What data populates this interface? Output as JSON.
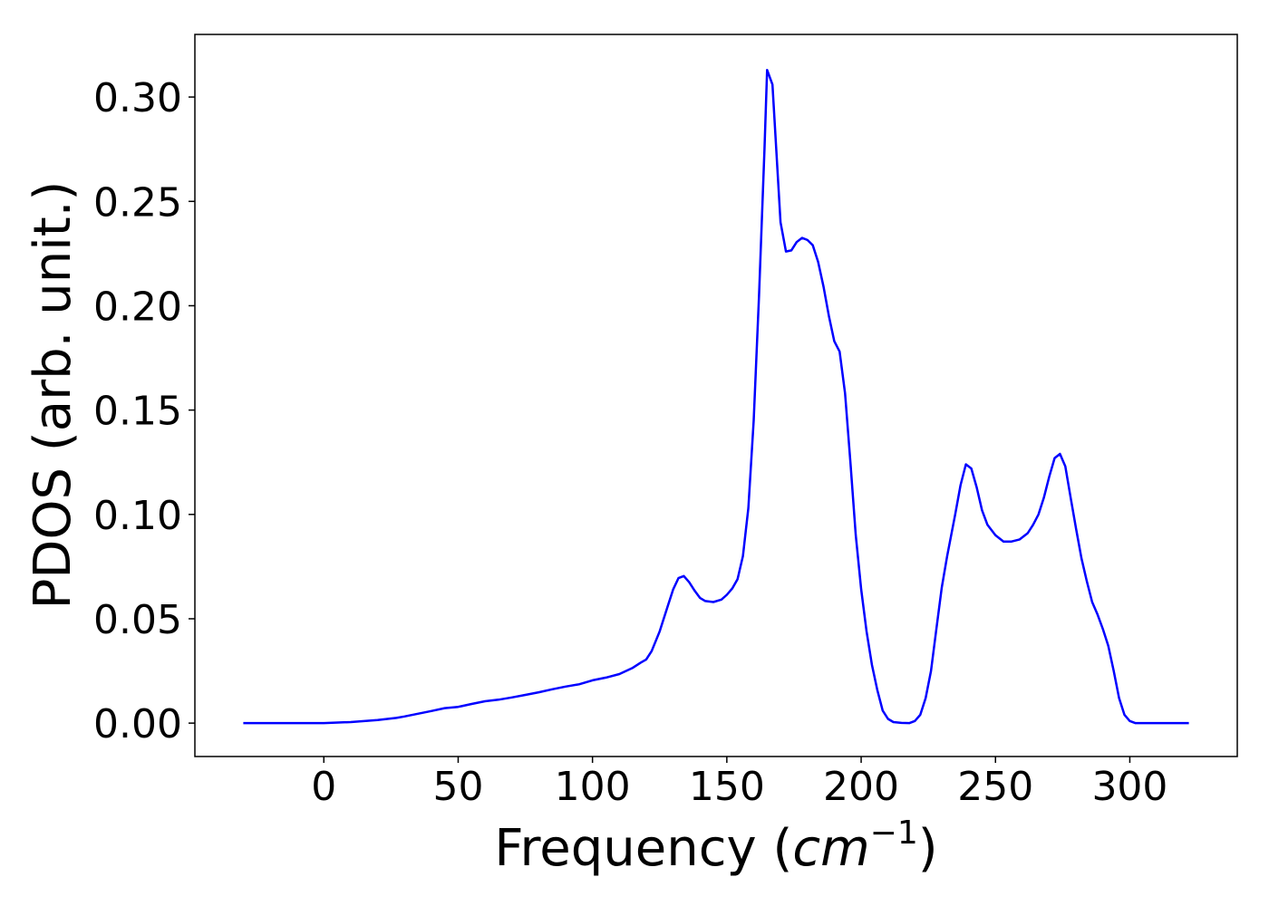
{
  "chart_data": {
    "type": "line",
    "title": "",
    "xlabel": "Frequency (",
    "xlabel_math": "cm",
    "xlabel_exp": "−1",
    "xlabel_close": ")",
    "ylabel": "PDOS (arb. unit.)",
    "xlim": [
      -48,
      340
    ],
    "ylim": [
      -0.016,
      0.33
    ],
    "xticks": [
      0,
      50,
      100,
      150,
      200,
      250,
      300
    ],
    "xtick_labels": [
      "0",
      "50",
      "100",
      "150",
      "200",
      "250",
      "300"
    ],
    "yticks": [
      0.0,
      0.05,
      0.1,
      0.15,
      0.2,
      0.25,
      0.3
    ],
    "ytick_labels": [
      "0.00",
      "0.05",
      "0.10",
      "0.15",
      "0.20",
      "0.25",
      "0.30"
    ],
    "grid": false,
    "series": [
      {
        "color": "#0000ff",
        "x": [
          -30,
          0,
          10,
          20,
          27,
          30,
          35,
          40,
          45,
          50,
          55,
          60,
          65,
          70,
          75,
          80,
          85,
          90,
          95,
          100,
          105,
          110,
          115,
          118,
          120,
          122,
          125,
          128,
          130,
          132,
          134,
          136,
          138,
          140,
          142,
          145,
          148,
          150,
          152,
          154,
          156,
          158,
          160,
          162,
          164,
          165,
          167,
          170,
          172,
          174,
          176,
          178,
          180,
          182,
          184,
          186,
          188,
          190,
          192,
          194,
          196,
          198,
          200,
          202,
          204,
          206,
          208,
          210,
          212,
          215,
          218,
          220,
          222,
          224,
          226,
          228,
          230,
          232,
          235,
          237,
          239,
          241,
          243,
          245,
          247,
          250,
          253,
          256,
          259,
          262,
          264,
          266,
          268,
          270,
          272,
          274,
          276,
          278,
          280,
          282,
          284,
          286,
          288,
          290,
          292,
          294,
          296,
          298,
          300,
          302,
          310,
          322
        ],
        "y": [
          0.0,
          0.0,
          0.0005,
          0.0015,
          0.0025,
          0.0032,
          0.0045,
          0.0058,
          0.0072,
          0.0078,
          0.0092,
          0.0105,
          0.0112,
          0.0123,
          0.0135,
          0.0148,
          0.0162,
          0.0175,
          0.0186,
          0.0205,
          0.0218,
          0.0235,
          0.0265,
          0.029,
          0.0305,
          0.0345,
          0.044,
          0.056,
          0.064,
          0.0695,
          0.0705,
          0.0675,
          0.0635,
          0.06,
          0.0585,
          0.058,
          0.0592,
          0.0615,
          0.0645,
          0.069,
          0.08,
          0.103,
          0.145,
          0.205,
          0.275,
          0.313,
          0.306,
          0.24,
          0.226,
          0.2265,
          0.2305,
          0.2325,
          0.2315,
          0.229,
          0.221,
          0.209,
          0.195,
          0.183,
          0.178,
          0.158,
          0.125,
          0.09,
          0.064,
          0.044,
          0.028,
          0.016,
          0.006,
          0.002,
          0.0005,
          0.0001,
          0.0,
          0.001,
          0.004,
          0.012,
          0.025,
          0.045,
          0.065,
          0.08,
          0.1,
          0.114,
          0.124,
          0.122,
          0.113,
          0.102,
          0.095,
          0.09,
          0.087,
          0.087,
          0.088,
          0.091,
          0.095,
          0.1,
          0.108,
          0.118,
          0.127,
          0.129,
          0.123,
          0.108,
          0.093,
          0.079,
          0.068,
          0.058,
          0.052,
          0.045,
          0.037,
          0.025,
          0.012,
          0.004,
          0.001,
          0.0,
          0.0,
          0.0
        ]
      }
    ]
  }
}
